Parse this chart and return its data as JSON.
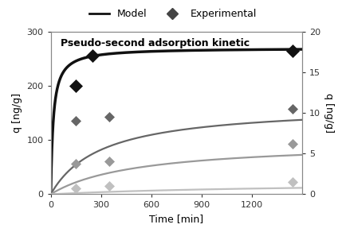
{
  "title": "Pseudo-second adsorption kinetic",
  "xlabel": "Time [min]",
  "ylabel_left": "q [ng/g]",
  "ylabel_right": "q [ng/g]",
  "xlim": [
    0,
    1500
  ],
  "ylim_left": [
    0,
    300
  ],
  "ylim_right": [
    0,
    20
  ],
  "yticks_left": [
    0,
    100,
    200,
    300
  ],
  "yticks_right": [
    0,
    5,
    10,
    15,
    20
  ],
  "xticks": [
    0,
    300,
    600,
    900,
    1200
  ],
  "curves": [
    {
      "qe": 270.0,
      "k2": 0.00025,
      "color": "#111111",
      "linewidth": 2.5,
      "axis": "left",
      "exp_t": [
        150,
        250,
        1440
      ],
      "exp_q": [
        200,
        255,
        265
      ],
      "exp_markersize": 8
    },
    {
      "qe": 11.0,
      "k2": 0.0003,
      "color": "#666666",
      "linewidth": 1.6,
      "axis": "right",
      "exp_t": [
        150,
        350,
        1440
      ],
      "exp_q": [
        9.0,
        9.5,
        10.5
      ],
      "exp_markersize": 6
    },
    {
      "qe": 6.5,
      "k2": 0.0003,
      "color": "#999999",
      "linewidth": 1.6,
      "axis": "right",
      "exp_t": [
        150,
        350,
        1440
      ],
      "exp_q": [
        3.8,
        4.0,
        6.2
      ],
      "exp_markersize": 6
    },
    {
      "qe": 1.6,
      "k2": 0.0004,
      "color": "#c0c0c0",
      "linewidth": 1.6,
      "axis": "right",
      "exp_t": [
        150,
        350,
        1440
      ],
      "exp_q": [
        0.75,
        1.0,
        1.5
      ],
      "exp_markersize": 6
    }
  ],
  "legend_model_color": "#111111",
  "legend_exp_color": "#444444",
  "marker": "D",
  "background_color": "#ffffff",
  "figsize": [
    4.34,
    2.97
  ],
  "dpi": 100
}
